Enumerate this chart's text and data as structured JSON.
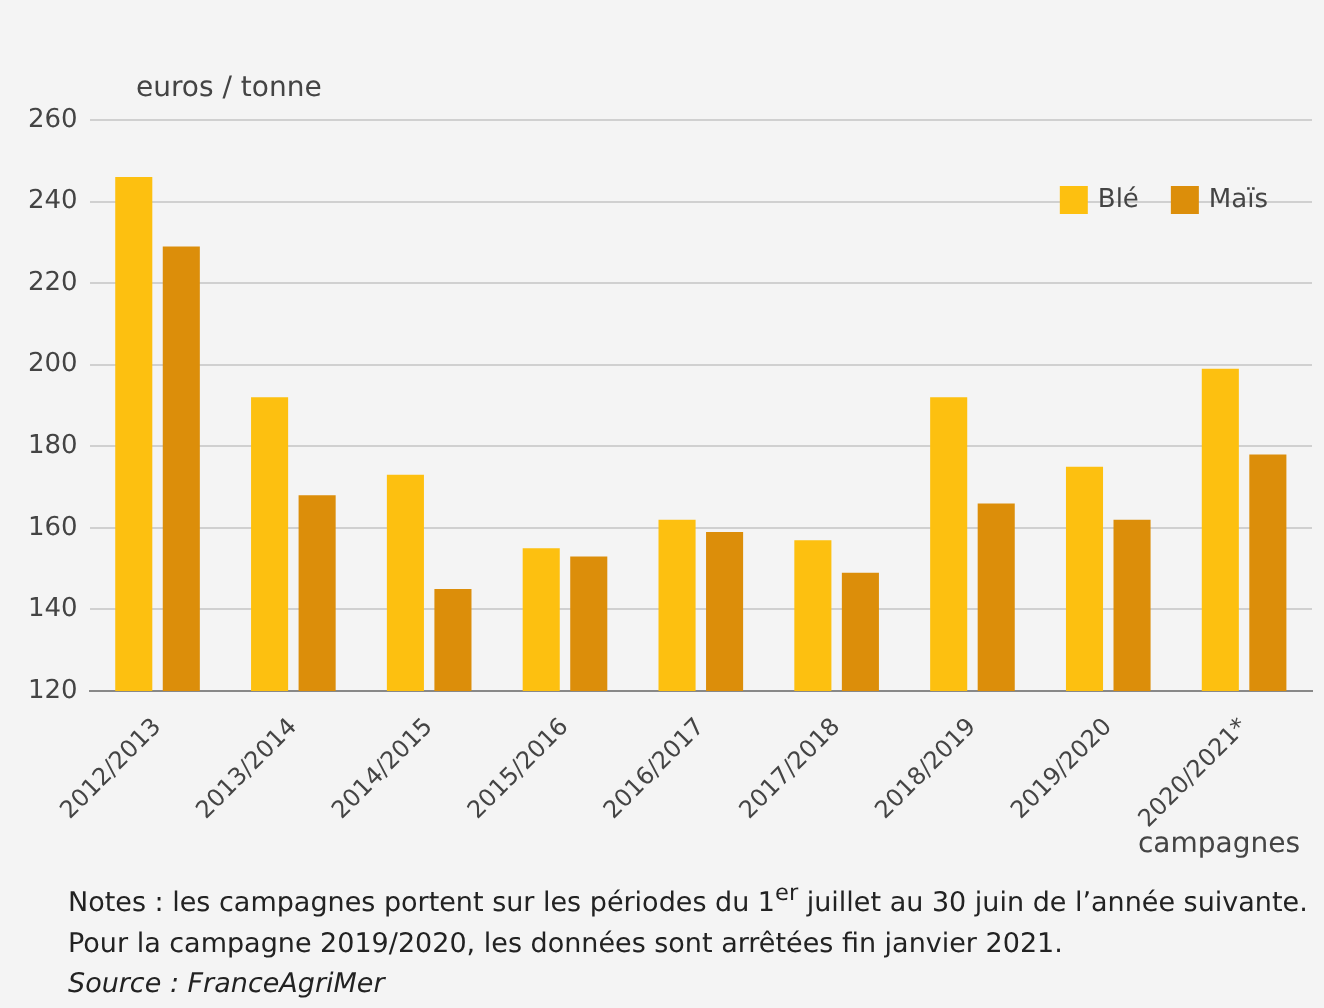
{
  "chart_data": {
    "type": "bar",
    "ylabel": "euros  / tonne",
    "xlabel": "campagnes",
    "categories": [
      "2012/2013",
      "2013/2014",
      "2014/2015",
      "2015/2016",
      "2016/2017",
      "2017/2018",
      "2018/2019",
      "2019/2020",
      "2020/2021*"
    ],
    "series": [
      {
        "name": "Blé",
        "color": "#fdc010",
        "values": [
          246,
          192,
          173,
          155,
          162,
          157,
          192,
          175,
          199
        ]
      },
      {
        "name": "Maïs",
        "color": "#dc8e0a",
        "values": [
          229,
          168,
          145,
          153,
          159,
          149,
          166,
          162,
          178
        ]
      }
    ],
    "ylim": [
      120,
      260
    ],
    "yticks": [
      120,
      140,
      160,
      180,
      200,
      220,
      240,
      260
    ],
    "grid": "y",
    "legend": "top right",
    "annotations": [
      "Notes : les campagnes portent sur les périodes du 1$^{er}$ juillet au 30 juin de l’année suivante. Pour la campagne 2019/2020, les données sont arrêtées fin janvier 2021.",
      "Source : FranceAgriMer"
    ]
  }
}
